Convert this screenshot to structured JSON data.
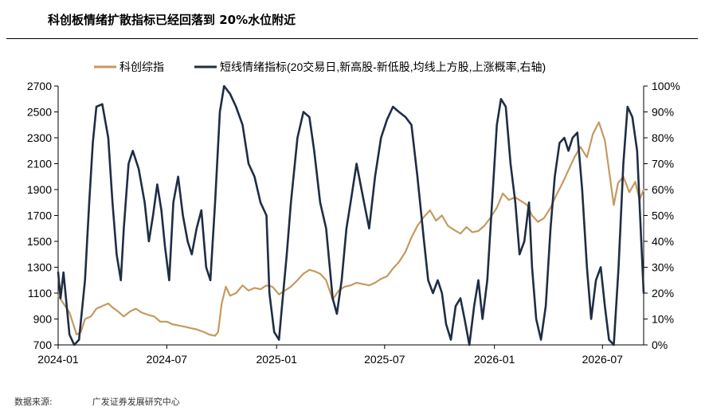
{
  "title": "科创板情绪扩散指标已经回落到 20%水位附近",
  "source": {
    "label": "数据来源:",
    "org": "广发证券发展研究中心"
  },
  "colors": {
    "gold": "#C49A5F",
    "navy": "#1F2D45"
  },
  "chart_data": {
    "type": "line",
    "title": "",
    "legend": {
      "position": "top",
      "entries": [
        "科创综指",
        "短线情绪指标(20交易日,新高股-新低股,均线上方股,上涨概率率,右轴)"
      ]
    },
    "legend_text": [
      "科创综指",
      "短线情绪指标(20交易日,新高股-新低股,均线上方股,上涨概率,右轴)"
    ],
    "x_ticks": [
      "2024-01",
      "2024-07",
      "2025-01",
      "2025-07",
      "2026-01",
      "2026-07"
    ],
    "x_range": [
      "2024-01",
      "2026-09"
    ],
    "left_axis": {
      "range": [
        700,
        2700
      ],
      "ticks": [
        700,
        900,
        1100,
        1300,
        1500,
        1700,
        1900,
        2100,
        2300,
        2500,
        2700
      ]
    },
    "right_axis": {
      "range": [
        0,
        100
      ],
      "ticks": [
        "0%",
        "10%",
        "20%",
        "30%",
        "40%",
        "50%",
        "60%",
        "70%",
        "80%",
        "90%",
        "100%"
      ]
    },
    "grid": false,
    "series": [
      {
        "name": "科创综指",
        "axis": "left",
        "color": "#C49A5F",
        "points": [
          [
            "2024-01-01",
            1080
          ],
          [
            "2024-01-10",
            1020
          ],
          [
            "2024-01-20",
            950
          ],
          [
            "2024-02-01",
            780
          ],
          [
            "2024-02-08",
            800
          ],
          [
            "2024-02-15",
            900
          ],
          [
            "2024-02-25",
            920
          ],
          [
            "2024-03-05",
            980
          ],
          [
            "2024-03-15",
            1000
          ],
          [
            "2024-03-25",
            1020
          ],
          [
            "2024-04-01",
            990
          ],
          [
            "2024-04-10",
            960
          ],
          [
            "2024-04-20",
            920
          ],
          [
            "2024-05-01",
            960
          ],
          [
            "2024-05-10",
            980
          ],
          [
            "2024-05-20",
            950
          ],
          [
            "2024-06-01",
            930
          ],
          [
            "2024-06-10",
            920
          ],
          [
            "2024-06-20",
            880
          ],
          [
            "2024-07-01",
            880
          ],
          [
            "2024-07-10",
            860
          ],
          [
            "2024-07-20",
            850
          ],
          [
            "2024-08-01",
            840
          ],
          [
            "2024-08-10",
            830
          ],
          [
            "2024-08-20",
            820
          ],
          [
            "2024-09-01",
            800
          ],
          [
            "2024-09-10",
            780
          ],
          [
            "2024-09-20",
            770
          ],
          [
            "2024-09-25",
            800
          ],
          [
            "2024-10-01",
            1020
          ],
          [
            "2024-10-08",
            1150
          ],
          [
            "2024-10-15",
            1080
          ],
          [
            "2024-10-25",
            1100
          ],
          [
            "2024-11-05",
            1160
          ],
          [
            "2024-11-15",
            1120
          ],
          [
            "2024-11-25",
            1140
          ],
          [
            "2024-12-05",
            1130
          ],
          [
            "2024-12-15",
            1160
          ],
          [
            "2024-12-25",
            1150
          ],
          [
            "2025-01-05",
            1090
          ],
          [
            "2025-01-15",
            1120
          ],
          [
            "2025-01-25",
            1150
          ],
          [
            "2025-02-05",
            1200
          ],
          [
            "2025-02-15",
            1250
          ],
          [
            "2025-02-25",
            1280
          ],
          [
            "2025-03-05",
            1270
          ],
          [
            "2025-03-15",
            1250
          ],
          [
            "2025-03-25",
            1200
          ],
          [
            "2025-04-05",
            1050
          ],
          [
            "2025-04-15",
            1120
          ],
          [
            "2025-04-25",
            1150
          ],
          [
            "2025-05-05",
            1160
          ],
          [
            "2025-05-15",
            1180
          ],
          [
            "2025-05-25",
            1170
          ],
          [
            "2025-06-05",
            1160
          ],
          [
            "2025-06-15",
            1180
          ],
          [
            "2025-06-25",
            1210
          ],
          [
            "2025-07-05",
            1230
          ],
          [
            "2025-07-15",
            1290
          ],
          [
            "2025-07-25",
            1340
          ],
          [
            "2025-08-05",
            1420
          ],
          [
            "2025-08-15",
            1530
          ],
          [
            "2025-08-25",
            1620
          ],
          [
            "2025-09-05",
            1690
          ],
          [
            "2025-09-15",
            1740
          ],
          [
            "2025-09-25",
            1660
          ],
          [
            "2025-10-05",
            1700
          ],
          [
            "2025-10-15",
            1620
          ],
          [
            "2025-10-25",
            1590
          ],
          [
            "2025-11-05",
            1560
          ],
          [
            "2025-11-15",
            1610
          ],
          [
            "2025-11-25",
            1570
          ],
          [
            "2025-12-05",
            1580
          ],
          [
            "2025-12-15",
            1620
          ],
          [
            "2025-12-25",
            1680
          ],
          [
            "2026-01-05",
            1760
          ],
          [
            "2026-01-15",
            1870
          ],
          [
            "2026-01-25",
            1820
          ],
          [
            "2026-02-05",
            1840
          ],
          [
            "2026-02-15",
            1810
          ],
          [
            "2026-02-25",
            1780
          ],
          [
            "2026-03-05",
            1700
          ],
          [
            "2026-03-15",
            1650
          ],
          [
            "2026-03-25",
            1680
          ],
          [
            "2026-04-05",
            1760
          ],
          [
            "2026-04-15",
            1860
          ],
          [
            "2026-04-25",
            1950
          ],
          [
            "2026-05-05",
            2050
          ],
          [
            "2026-05-15",
            2150
          ],
          [
            "2026-05-25",
            2230
          ],
          [
            "2026-06-05",
            2150
          ],
          [
            "2026-06-15",
            2330
          ],
          [
            "2026-06-25",
            2420
          ],
          [
            "2026-07-05",
            2280
          ],
          [
            "2026-07-12",
            2050
          ],
          [
            "2026-07-20",
            1780
          ],
          [
            "2026-07-27",
            1950
          ],
          [
            "2026-08-05",
            2000
          ],
          [
            "2026-08-15",
            1880
          ],
          [
            "2026-08-25",
            1960
          ],
          [
            "2026-09-01",
            1820
          ],
          [
            "2026-09-08",
            1900
          ]
        ]
      },
      {
        "name": "短线情绪指标",
        "axis": "right",
        "color": "#1F2D45",
        "points": [
          [
            "2024-01-01",
            28
          ],
          [
            "2024-01-05",
            18
          ],
          [
            "2024-01-10",
            28
          ],
          [
            "2024-01-20",
            4
          ],
          [
            "2024-01-28",
            0
          ],
          [
            "2024-02-05",
            2
          ],
          [
            "2024-02-15",
            25
          ],
          [
            "2024-02-22",
            55
          ],
          [
            "2024-02-28",
            78
          ],
          [
            "2024-03-05",
            92
          ],
          [
            "2024-03-15",
            93
          ],
          [
            "2024-03-25",
            80
          ],
          [
            "2024-04-01",
            55
          ],
          [
            "2024-04-08",
            35
          ],
          [
            "2024-04-15",
            25
          ],
          [
            "2024-04-20",
            45
          ],
          [
            "2024-04-28",
            70
          ],
          [
            "2024-05-05",
            75
          ],
          [
            "2024-05-15",
            68
          ],
          [
            "2024-05-25",
            55
          ],
          [
            "2024-06-01",
            40
          ],
          [
            "2024-06-08",
            50
          ],
          [
            "2024-06-15",
            62
          ],
          [
            "2024-06-22",
            52
          ],
          [
            "2024-06-28",
            38
          ],
          [
            "2024-07-05",
            25
          ],
          [
            "2024-07-12",
            55
          ],
          [
            "2024-07-20",
            65
          ],
          [
            "2024-07-28",
            50
          ],
          [
            "2024-08-05",
            40
          ],
          [
            "2024-08-12",
            35
          ],
          [
            "2024-08-20",
            45
          ],
          [
            "2024-08-28",
            52
          ],
          [
            "2024-09-05",
            30
          ],
          [
            "2024-09-12",
            25
          ],
          [
            "2024-09-20",
            55
          ],
          [
            "2024-09-28",
            90
          ],
          [
            "2024-10-05",
            100
          ],
          [
            "2024-10-15",
            97
          ],
          [
            "2024-10-25",
            92
          ],
          [
            "2024-11-05",
            85
          ],
          [
            "2024-11-15",
            70
          ],
          [
            "2024-11-25",
            65
          ],
          [
            "2024-12-05",
            55
          ],
          [
            "2024-12-15",
            50
          ],
          [
            "2024-12-20",
            20
          ],
          [
            "2024-12-28",
            5
          ],
          [
            "2025-01-05",
            2
          ],
          [
            "2025-01-10",
            15
          ],
          [
            "2025-01-18",
            35
          ],
          [
            "2025-01-25",
            55
          ],
          [
            "2025-02-05",
            80
          ],
          [
            "2025-02-15",
            90
          ],
          [
            "2025-02-25",
            88
          ],
          [
            "2025-03-05",
            75
          ],
          [
            "2025-03-15",
            55
          ],
          [
            "2025-03-25",
            45
          ],
          [
            "2025-04-05",
            18
          ],
          [
            "2025-04-12",
            12
          ],
          [
            "2025-04-20",
            25
          ],
          [
            "2025-04-28",
            45
          ],
          [
            "2025-05-05",
            55
          ],
          [
            "2025-05-15",
            70
          ],
          [
            "2025-05-25",
            58
          ],
          [
            "2025-06-05",
            45
          ],
          [
            "2025-06-15",
            65
          ],
          [
            "2025-06-25",
            80
          ],
          [
            "2025-07-05",
            87
          ],
          [
            "2025-07-15",
            92
          ],
          [
            "2025-07-25",
            90
          ],
          [
            "2025-08-05",
            88
          ],
          [
            "2025-08-15",
            85
          ],
          [
            "2025-08-25",
            65
          ],
          [
            "2025-09-05",
            40
          ],
          [
            "2025-09-12",
            25
          ],
          [
            "2025-09-20",
            20
          ],
          [
            "2025-09-28",
            25
          ],
          [
            "2025-10-05",
            20
          ],
          [
            "2025-10-12",
            8
          ],
          [
            "2025-10-20",
            2
          ],
          [
            "2025-10-28",
            15
          ],
          [
            "2025-11-05",
            18
          ],
          [
            "2025-11-12",
            10
          ],
          [
            "2025-11-20",
            0
          ],
          [
            "2025-11-28",
            15
          ],
          [
            "2025-12-05",
            25
          ],
          [
            "2025-12-12",
            10
          ],
          [
            "2025-12-20",
            25
          ],
          [
            "2025-12-28",
            55
          ],
          [
            "2026-01-05",
            85
          ],
          [
            "2026-01-12",
            95
          ],
          [
            "2026-01-20",
            92
          ],
          [
            "2026-01-28",
            70
          ],
          [
            "2026-02-05",
            55
          ],
          [
            "2026-02-12",
            35
          ],
          [
            "2026-02-20",
            40
          ],
          [
            "2026-02-28",
            55
          ],
          [
            "2026-03-05",
            30
          ],
          [
            "2026-03-12",
            10
          ],
          [
            "2026-03-20",
            2
          ],
          [
            "2026-03-28",
            15
          ],
          [
            "2026-04-05",
            45
          ],
          [
            "2026-04-12",
            65
          ],
          [
            "2026-04-20",
            78
          ],
          [
            "2026-04-28",
            80
          ],
          [
            "2026-05-05",
            75
          ],
          [
            "2026-05-12",
            80
          ],
          [
            "2026-05-20",
            82
          ],
          [
            "2026-05-28",
            60
          ],
          [
            "2026-06-05",
            30
          ],
          [
            "2026-06-12",
            10
          ],
          [
            "2026-06-20",
            25
          ],
          [
            "2026-06-28",
            30
          ],
          [
            "2026-07-05",
            15
          ],
          [
            "2026-07-12",
            2
          ],
          [
            "2026-07-20",
            0
          ],
          [
            "2026-07-28",
            30
          ],
          [
            "2026-08-05",
            70
          ],
          [
            "2026-08-12",
            92
          ],
          [
            "2026-08-20",
            88
          ],
          [
            "2026-08-28",
            75
          ],
          [
            "2026-09-04",
            40
          ],
          [
            "2026-09-08",
            20
          ]
        ]
      }
    ]
  }
}
